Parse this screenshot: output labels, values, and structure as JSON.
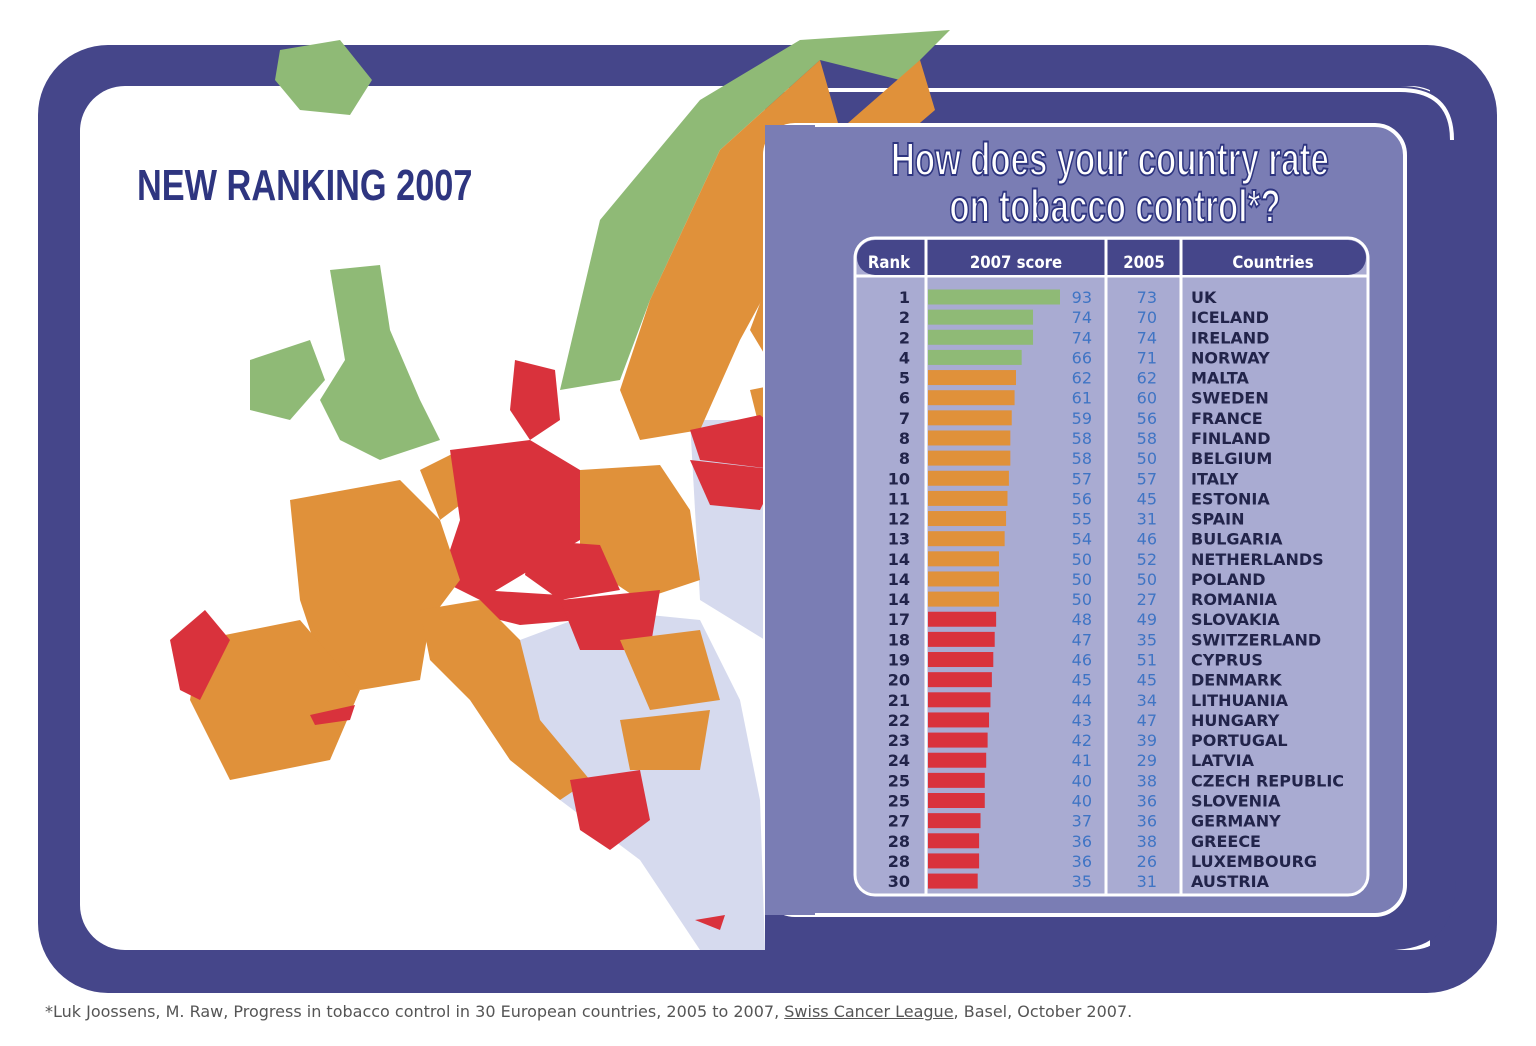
{
  "title": "NEW RANKING 2007",
  "heading": [
    "How does your country rate",
    "on tobacco control*?"
  ],
  "table": {
    "columns": [
      "Rank",
      "2007 score",
      "2005",
      "Countries"
    ],
    "rows": [
      {
        "rank": 1,
        "score_2007": 93,
        "score_2005": 73,
        "country": "UK",
        "color": "#8fba76"
      },
      {
        "rank": 2,
        "score_2007": 74,
        "score_2005": 70,
        "country": "ICELAND",
        "color": "#8fba76"
      },
      {
        "rank": 2,
        "score_2007": 74,
        "score_2005": 74,
        "country": "IRELAND",
        "color": "#8fba76"
      },
      {
        "rank": 4,
        "score_2007": 66,
        "score_2005": 71,
        "country": "NORWAY",
        "color": "#8fba76"
      },
      {
        "rank": 5,
        "score_2007": 62,
        "score_2005": 62,
        "country": "MALTA",
        "color": "#e0913a"
      },
      {
        "rank": 6,
        "score_2007": 61,
        "score_2005": 60,
        "country": "SWEDEN",
        "color": "#e0913a"
      },
      {
        "rank": 7,
        "score_2007": 59,
        "score_2005": 56,
        "country": "FRANCE",
        "color": "#e0913a"
      },
      {
        "rank": 8,
        "score_2007": 58,
        "score_2005": 58,
        "country": "FINLAND",
        "color": "#e0913a"
      },
      {
        "rank": 8,
        "score_2007": 58,
        "score_2005": 50,
        "country": "BELGIUM",
        "color": "#e0913a"
      },
      {
        "rank": 10,
        "score_2007": 57,
        "score_2005": 57,
        "country": "ITALY",
        "color": "#e0913a"
      },
      {
        "rank": 11,
        "score_2007": 56,
        "score_2005": 45,
        "country": "ESTONIA",
        "color": "#e0913a"
      },
      {
        "rank": 12,
        "score_2007": 55,
        "score_2005": 31,
        "country": "SPAIN",
        "color": "#e0913a"
      },
      {
        "rank": 13,
        "score_2007": 54,
        "score_2005": 46,
        "country": "BULGARIA",
        "color": "#e0913a"
      },
      {
        "rank": 14,
        "score_2007": 50,
        "score_2005": 52,
        "country": "NETHERLANDS",
        "color": "#e0913a"
      },
      {
        "rank": 14,
        "score_2007": 50,
        "score_2005": 50,
        "country": "POLAND",
        "color": "#e0913a"
      },
      {
        "rank": 14,
        "score_2007": 50,
        "score_2005": 27,
        "country": "ROMANIA",
        "color": "#e0913a"
      },
      {
        "rank": 17,
        "score_2007": 48,
        "score_2005": 49,
        "country": "SLOVAKIA",
        "color": "#d9323c"
      },
      {
        "rank": 18,
        "score_2007": 47,
        "score_2005": 35,
        "country": "SWITZERLAND",
        "color": "#d9323c"
      },
      {
        "rank": 19,
        "score_2007": 46,
        "score_2005": 51,
        "country": "CYPRUS",
        "color": "#d9323c"
      },
      {
        "rank": 20,
        "score_2007": 45,
        "score_2005": 45,
        "country": "DENMARK",
        "color": "#d9323c"
      },
      {
        "rank": 21,
        "score_2007": 44,
        "score_2005": 34,
        "country": "LITHUANIA",
        "color": "#d9323c"
      },
      {
        "rank": 22,
        "score_2007": 43,
        "score_2005": 47,
        "country": "HUNGARY",
        "color": "#d9323c"
      },
      {
        "rank": 23,
        "score_2007": 42,
        "score_2005": 39,
        "country": "PORTUGAL",
        "color": "#d9323c"
      },
      {
        "rank": 24,
        "score_2007": 41,
        "score_2005": 29,
        "country": "LATVIA",
        "color": "#d9323c"
      },
      {
        "rank": 25,
        "score_2007": 40,
        "score_2005": 38,
        "country": "CZECH REPUBLIC",
        "color": "#d9323c"
      },
      {
        "rank": 25,
        "score_2007": 40,
        "score_2005": 36,
        "country": "SLOVENIA",
        "color": "#d9323c"
      },
      {
        "rank": 27,
        "score_2007": 37,
        "score_2005": 36,
        "country": "GERMANY",
        "color": "#d9323c"
      },
      {
        "rank": 28,
        "score_2007": 36,
        "score_2005": 38,
        "country": "GREECE",
        "color": "#d9323c"
      },
      {
        "rank": 28,
        "score_2007": 36,
        "score_2005": 26,
        "country": "LUXEMBOURG",
        "color": "#d9323c"
      },
      {
        "rank": 30,
        "score_2007": 35,
        "score_2005": 31,
        "country": "AUSTRIA",
        "color": "#d9323c"
      }
    ]
  },
  "footnote": {
    "before": "*Luk Joossens, M. Raw, Progress in tobacco control in 30 European countries, 2005 to 2007, ",
    "link": "Swiss Cancer League",
    "after": ", Basel, October 2007."
  }
}
